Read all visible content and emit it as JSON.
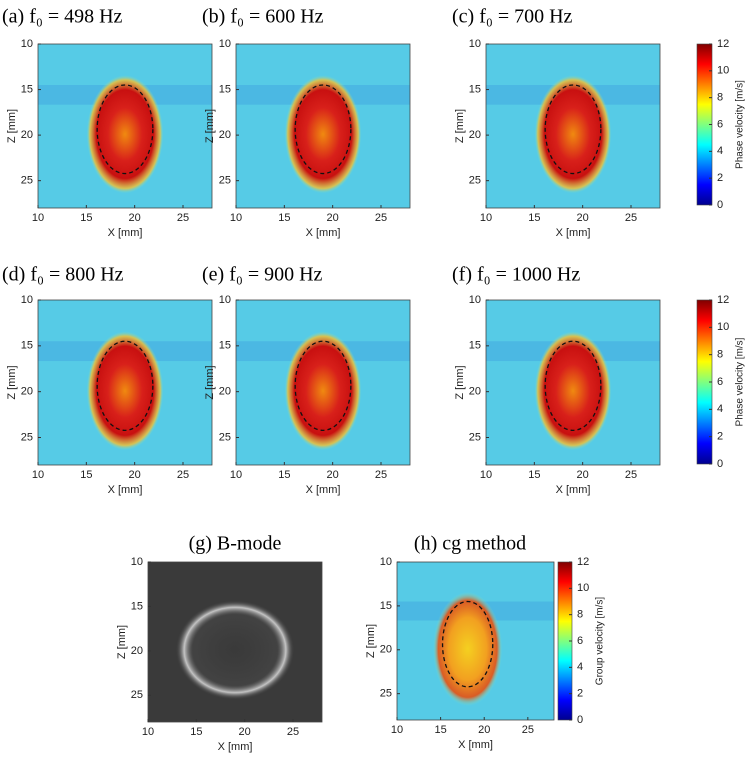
{
  "chart_data": [
    {
      "type": "heatmap",
      "title": "(a) f₀ = 498 Hz",
      "xlabel": "X [mm]",
      "ylabel": "Z [mm]",
      "xlim": [
        10,
        28
      ],
      "ylim": [
        10,
        28
      ],
      "yreverse": true,
      "xticks": [
        10,
        15,
        20,
        25
      ],
      "yticks": [
        10,
        15,
        20,
        25
      ],
      "colormap": "jet"
    },
    {
      "type": "heatmap",
      "title": "(b) f₀ = 600 Hz",
      "xlabel": "X [mm]",
      "ylabel": "Z [mm]",
      "xlim": [
        10,
        28
      ],
      "ylim": [
        10,
        28
      ],
      "yreverse": true,
      "xticks": [
        10,
        15,
        20,
        25
      ],
      "yticks": [
        10,
        15,
        20,
        25
      ],
      "colormap": "jet"
    },
    {
      "type": "heatmap",
      "title": "(c) f₀ = 700 Hz",
      "xlabel": "X [mm]",
      "ylabel": "Z [mm]",
      "xlim": [
        10,
        28
      ],
      "ylim": [
        10,
        28
      ],
      "yreverse": true,
      "xticks": [
        10,
        15,
        20,
        25
      ],
      "yticks": [
        10,
        15,
        20,
        25
      ],
      "colormap": "jet",
      "clabel": "Phase velocity [m/s]",
      "clim": [
        0,
        12
      ],
      "cticks": [
        0,
        2,
        4,
        6,
        8,
        10,
        12
      ]
    },
    {
      "type": "heatmap",
      "title": "(d) f₀ = 800 Hz",
      "xlabel": "X [mm]",
      "ylabel": "Z [mm]",
      "xlim": [
        10,
        28
      ],
      "ylim": [
        10,
        28
      ],
      "yreverse": true,
      "xticks": [
        10,
        15,
        20,
        25
      ],
      "yticks": [
        10,
        15,
        20,
        25
      ],
      "colormap": "jet"
    },
    {
      "type": "heatmap",
      "title": "(e) f₀ = 900 Hz",
      "xlabel": "X [mm]",
      "ylabel": "Z [mm]",
      "xlim": [
        10,
        28
      ],
      "ylim": [
        10,
        28
      ],
      "yreverse": true,
      "xticks": [
        10,
        15,
        20,
        25
      ],
      "yticks": [
        10,
        15,
        20,
        25
      ],
      "colormap": "jet"
    },
    {
      "type": "heatmap",
      "title": "(f) f₀ = 1000 Hz",
      "xlabel": "X [mm]",
      "ylabel": "Z [mm]",
      "xlim": [
        10,
        28
      ],
      "ylim": [
        10,
        28
      ],
      "yreverse": true,
      "xticks": [
        10,
        15,
        20,
        25
      ],
      "yticks": [
        10,
        15,
        20,
        25
      ],
      "colormap": "jet",
      "clabel": "Phase velocity [m/s]",
      "clim": [
        0,
        12
      ],
      "cticks": [
        0,
        2,
        4,
        6,
        8,
        10,
        12
      ]
    },
    {
      "type": "heatmap",
      "title": "(g) B-mode",
      "xlabel": "X [mm]",
      "ylabel": "Z [mm]",
      "xlim": [
        10,
        28
      ],
      "ylim": [
        10,
        28
      ],
      "yreverse": true,
      "xticks": [
        10,
        15,
        20,
        25
      ],
      "yticks": [
        10,
        15,
        20,
        25
      ],
      "colormap": "gray"
    },
    {
      "type": "heatmap",
      "title": "(h) cg method",
      "xlabel": "X [mm]",
      "ylabel": "Z [mm]",
      "xlim": [
        10,
        28
      ],
      "ylim": [
        10,
        28
      ],
      "yreverse": true,
      "xticks": [
        10,
        15,
        20,
        25
      ],
      "yticks": [
        10,
        15,
        20,
        25
      ],
      "colormap": "jet",
      "clabel": "Group velocity [m/s]",
      "clim": [
        0,
        12
      ],
      "cticks": [
        0,
        2,
        4,
        6,
        8,
        10,
        12
      ]
    }
  ]
}
